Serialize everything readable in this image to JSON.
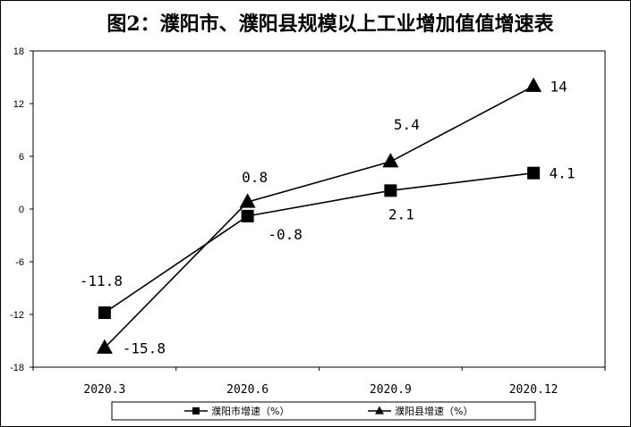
{
  "chart_data": {
    "type": "line",
    "title": "图2：濮阳市、濮阳县规模以上工业增加值值增速表",
    "categories": [
      "2020.3",
      "2020.6",
      "2020.9",
      "2020.12"
    ],
    "yticks": [
      "18",
      "12",
      "6",
      "0",
      "-6",
      "-12",
      "-18"
    ],
    "ylim": [
      -18,
      18
    ],
    "ystep": 6,
    "grid": false,
    "legend_position": "bottom",
    "series": [
      {
        "name": "濮阳市增速（%）",
        "marker": "square",
        "values": [
          -11.8,
          -0.8,
          2.1,
          4.1
        ],
        "labels": [
          "-11.8",
          "-0.8",
          "2.1",
          "4.1"
        ],
        "color": "#000000"
      },
      {
        "name": "濮阳县增速（%）",
        "marker": "triangle",
        "values": [
          -15.8,
          0.8,
          5.4,
          14
        ],
        "labels": [
          "-15.8",
          "0.8",
          "5.4",
          "14"
        ],
        "color": "#000000"
      }
    ]
  }
}
